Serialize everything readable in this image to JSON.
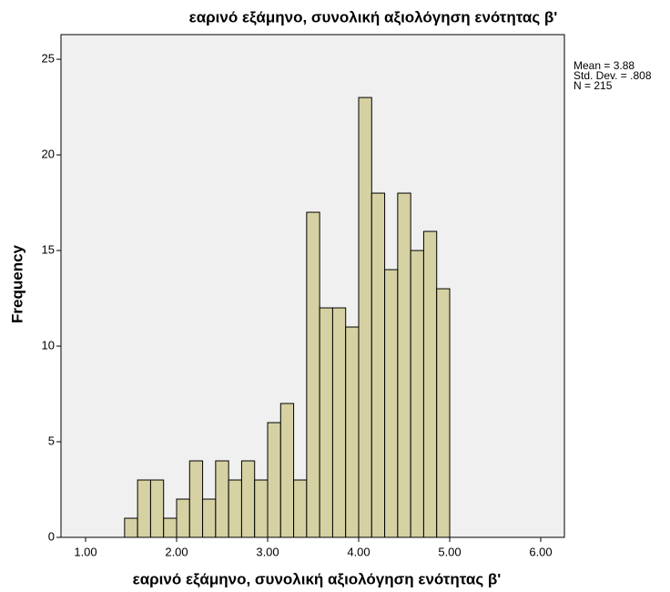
{
  "chart_data": {
    "type": "histogram",
    "title": "εαρινό εξάμηνο, συνολική αξιολόγηση ενότητας β'",
    "x_label": "εαρινό εξάμηνο, συνολική αξιολόγηση ενότητας β'",
    "y_label": "Frequency",
    "bins": [
      1.4286,
      1.5714,
      1.7143,
      1.8571,
      2,
      2.1429,
      2.2857,
      2.4286,
      2.5714,
      2.7143,
      2.8571,
      3,
      3.1429,
      3.2857,
      3.4286,
      3.5714,
      3.7143,
      3.8571,
      4,
      4.1429,
      4.2857,
      4.4286,
      4.5714,
      4.7143,
      4.8571,
      5
    ],
    "counts": [
      1,
      3,
      3,
      1,
      2,
      4,
      2,
      4,
      3,
      4,
      3,
      6,
      7,
      3,
      17,
      12,
      12,
      11,
      23,
      18,
      14,
      18,
      15,
      16,
      13
    ],
    "color": "#d6d1a3",
    "xlim": [
      0.73,
      6.26
    ],
    "xticks": [
      {
        "value": 1,
        "label": "1.00"
      },
      {
        "value": 2,
        "label": "2.00"
      },
      {
        "value": 3,
        "label": "3.00"
      },
      {
        "value": 4,
        "label": "4.00"
      },
      {
        "value": 5,
        "label": "5.00"
      },
      {
        "value": 6,
        "label": "6.00"
      }
    ],
    "ylim": [
      0,
      26.29
    ],
    "yticks": [
      0,
      5,
      10,
      15,
      20,
      25
    ],
    "annotations": [
      "Mean = 3.88",
      "Std. Dev. = .808",
      "N = 215"
    ]
  }
}
